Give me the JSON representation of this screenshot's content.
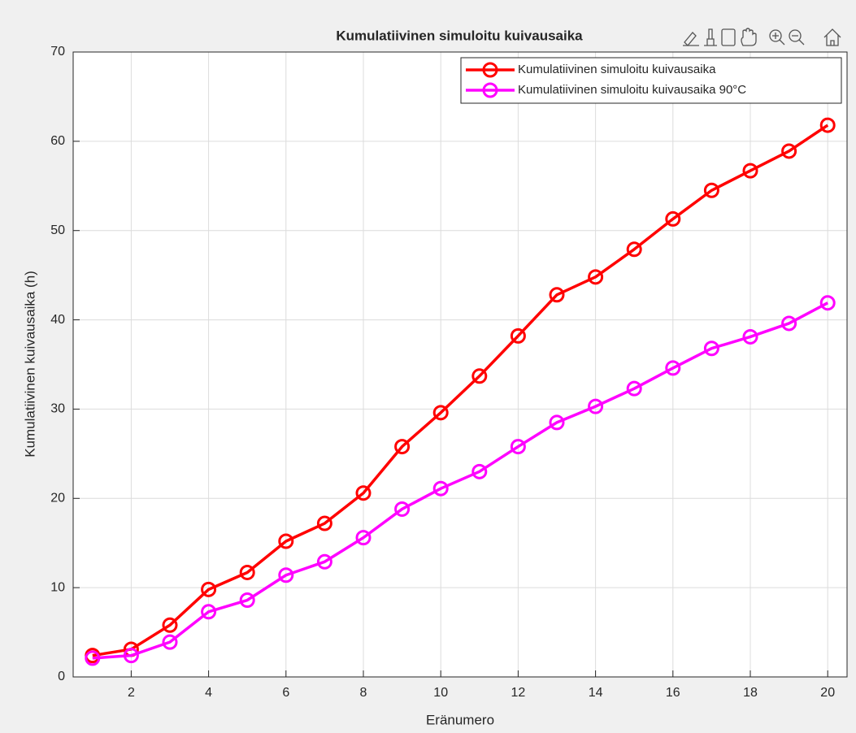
{
  "chart_data": {
    "type": "line",
    "title": "Kumulatiivinen simuloitu kuivausaika",
    "x_label": "Eränumero",
    "y_label": "Kumulatiivinen kuivausaika (h)",
    "x": [
      1,
      2,
      3,
      4,
      5,
      6,
      7,
      8,
      9,
      10,
      11,
      12,
      13,
      14,
      15,
      16,
      17,
      18,
      19,
      20
    ],
    "series": [
      {
        "name": "Kumulatiivinen simuloitu kuivausaika",
        "color": "#ff0000",
        "values": [
          2.4,
          3.1,
          5.8,
          9.8,
          11.7,
          15.2,
          17.2,
          20.6,
          25.8,
          29.6,
          33.7,
          38.2,
          42.8,
          44.8,
          47.9,
          51.3,
          54.5,
          56.7,
          58.9,
          61.8
        ]
      },
      {
        "name": "Kumulatiivinen simuloitu kuivausaika 90°C",
        "color": "#ff00ff",
        "values": [
          2.1,
          2.4,
          3.9,
          7.3,
          8.6,
          11.4,
          12.9,
          15.6,
          18.8,
          21.1,
          23.0,
          25.8,
          28.5,
          30.3,
          32.3,
          34.6,
          36.8,
          38.1,
          39.6,
          41.9
        ]
      }
    ],
    "xlim": [
      0.5,
      20.5
    ],
    "xticks": [
      2,
      4,
      6,
      8,
      10,
      12,
      14,
      16,
      18,
      20
    ],
    "ylim": [
      0,
      70
    ],
    "yticks": [
      0,
      10,
      20,
      30,
      40,
      50,
      60,
      70
    ],
    "grid": true,
    "legend": "top-right"
  }
}
